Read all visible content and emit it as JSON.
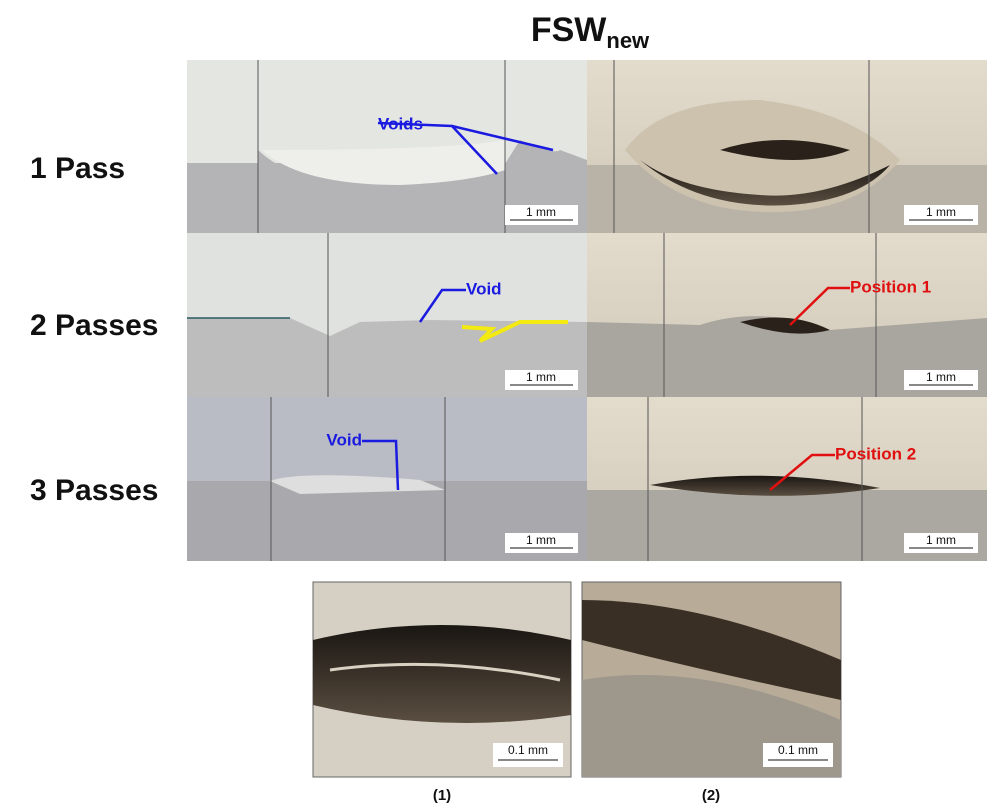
{
  "title": {
    "main": "FSW",
    "subscript": "new"
  },
  "rows": [
    {
      "label": "1 Pass",
      "left": {
        "annotation": "Voids",
        "scale": "1 mm"
      },
      "right": {
        "scale": "1 mm"
      }
    },
    {
      "label": "2 Passes",
      "left": {
        "annotation": "Void",
        "scale": "1 mm"
      },
      "right": {
        "annotation": "Position 1",
        "scale": "1 mm"
      }
    },
    {
      "label": "3 Passes",
      "left": {
        "annotation": "Void",
        "scale": "1 mm"
      },
      "right": {
        "annotation": "Position 2",
        "scale": "1 mm"
      }
    }
  ],
  "details": [
    {
      "caption": "(1)",
      "scale": "0.1 mm"
    },
    {
      "caption": "(2)",
      "scale": "0.1 mm"
    }
  ]
}
